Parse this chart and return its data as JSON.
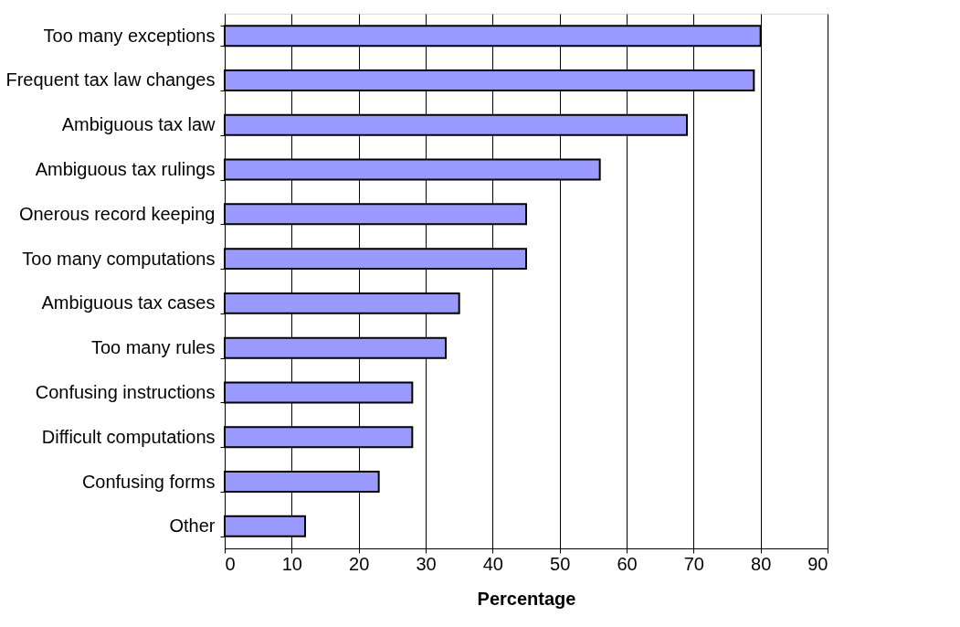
{
  "chart_data": {
    "type": "bar",
    "orientation": "horizontal",
    "xlabel": "Percentage",
    "categories": [
      "Too many exceptions",
      "Frequent tax law changes",
      "Ambiguous tax law",
      "Ambiguous tax rulings",
      "Onerous record keeping",
      "Too many computations",
      "Ambiguous tax cases",
      "Too many rules",
      "Confusing instructions",
      "Difficult computations",
      "Confusing forms",
      "Other"
    ],
    "values": [
      80,
      79,
      69,
      56,
      45,
      45,
      35,
      33,
      28,
      28,
      23,
      12
    ],
    "color": "#9999ff",
    "xlim": [
      0,
      90
    ],
    "xticks": [
      0,
      10,
      20,
      30,
      40,
      50,
      60,
      70,
      80,
      90
    ],
    "grid": "x"
  }
}
